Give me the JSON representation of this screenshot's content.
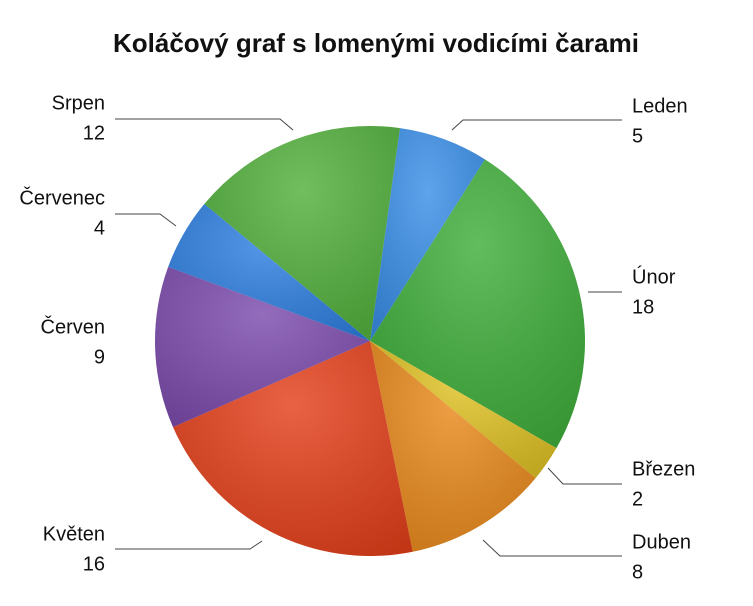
{
  "chart_data": {
    "type": "pie",
    "title": "Koláčový graf s lomenými vodicími čarami",
    "categories": [
      "Leden",
      "Únor",
      "Březen",
      "Duben",
      "Květen",
      "Červen",
      "Červenec",
      "Srpen"
    ],
    "values": [
      5,
      18,
      2,
      8,
      16,
      9,
      4,
      12
    ],
    "colors": [
      "#3a8fe8",
      "#3fae3a",
      "#e0c224",
      "#ea8a1c",
      "#e4401a",
      "#7d4cae",
      "#2f80e2",
      "#52b03c"
    ]
  }
}
